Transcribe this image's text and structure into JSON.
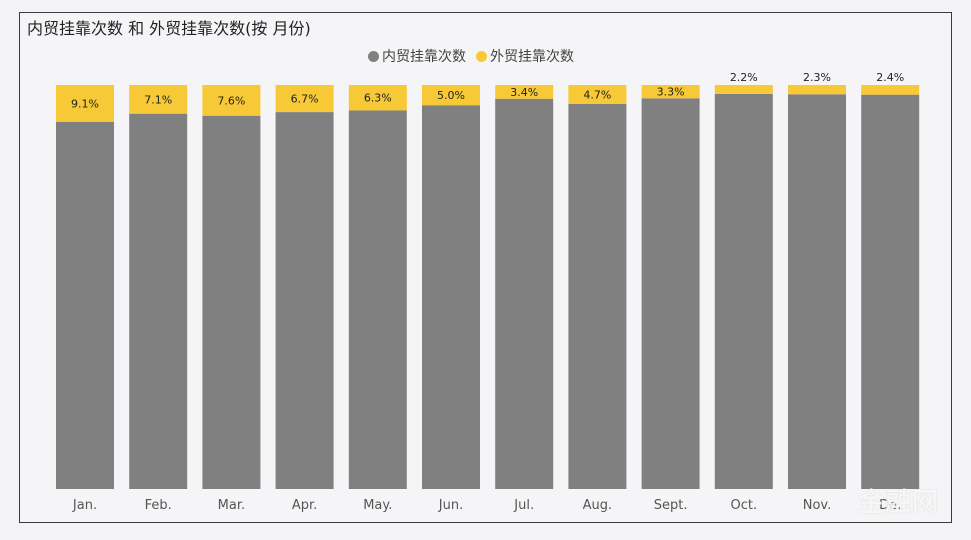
{
  "title": "内贸挂靠次数 和 外贸挂靠次数(按 月份)",
  "legend": {
    "domestic": "内贸挂靠次数",
    "foreign": "外贸挂靠次数"
  },
  "colors": {
    "domestic": "#808080",
    "foreign": "#f7c936"
  },
  "watermark": "金融网",
  "chart_data": {
    "type": "bar",
    "stacked": "percent",
    "categories": [
      "Jan.",
      "Feb.",
      "Mar.",
      "Apr.",
      "May.",
      "Jun.",
      "Jul.",
      "Aug.",
      "Sept.",
      "Oct.",
      "Nov.",
      "De."
    ],
    "series": [
      {
        "name": "内贸挂靠次数",
        "values": [
          90.9,
          92.9,
          92.4,
          93.3,
          93.7,
          95.0,
          96.6,
          95.3,
          96.7,
          97.8,
          97.7,
          97.6
        ]
      },
      {
        "name": "外贸挂靠次数",
        "values": [
          9.1,
          7.1,
          7.6,
          6.7,
          6.3,
          5.0,
          3.4,
          4.7,
          3.3,
          2.2,
          2.3,
          2.4
        ]
      }
    ],
    "data_labels": [
      "9.1%",
      "7.1%",
      "7.6%",
      "6.7%",
      "6.3%",
      "5.0%",
      "3.4%",
      "4.7%",
      "3.3%",
      "2.2%",
      "2.3%",
      "2.4%"
    ],
    "ylim": [
      0,
      100
    ],
    "grid": false,
    "legend_position": "top-center"
  }
}
